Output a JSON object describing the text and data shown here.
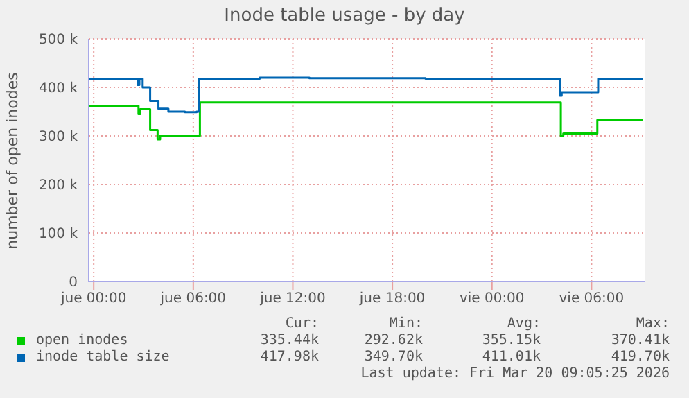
{
  "chart_data": {
    "type": "step",
    "title": "Inode table usage - by day",
    "ylabel": "number of open inodes",
    "xlim": [
      "2026-03-18T23:42",
      "2026-03-20T09:12"
    ],
    "xticks": [
      {
        "value": "2026-03-19T00:00",
        "label": "jue 00:00"
      },
      {
        "value": "2026-03-19T06:00",
        "label": "jue 06:00"
      },
      {
        "value": "2026-03-19T12:00",
        "label": "jue 12:00"
      },
      {
        "value": "2026-03-19T18:00",
        "label": "jue 18:00"
      },
      {
        "value": "2026-03-20T00:00",
        "label": "vie 00:00"
      },
      {
        "value": "2026-03-20T06:00",
        "label": "vie 06:00"
      }
    ],
    "ylim": [
      0,
      500
    ],
    "yticks": [
      0,
      {
        "value": 100,
        "label": "100 k"
      },
      {
        "value": 200,
        "label": "200 k"
      },
      {
        "value": 300,
        "label": "300 k"
      },
      {
        "value": 400,
        "label": "400 k"
      },
      {
        "value": 500,
        "label": "500 k"
      }
    ],
    "grid": true,
    "legend": "bottom left",
    "marker": "none",
    "line_style": "solid",
    "series": [
      {
        "name": "open inodes",
        "color": "#00cc00",
        "x": [
          "2026-03-18T23:42",
          "2026-03-19T02:36",
          "2026-03-19T02:42",
          "2026-03-19T02:48",
          "2026-03-19T03:18",
          "2026-03-19T03:24",
          "2026-03-19T03:48",
          "2026-03-19T03:51",
          "2026-03-19T04:00",
          "2026-03-19T06:12",
          "2026-03-19T06:24",
          "2026-03-20T00:00",
          "2026-03-20T04:00",
          "2026-03-20T04:09",
          "2026-03-20T04:18",
          "2026-03-20T06:12",
          "2026-03-20T06:21",
          "2026-03-20T09:05"
        ],
        "values": [
          362,
          362,
          345,
          355,
          355,
          312,
          312,
          293,
          300,
          300,
          369,
          369,
          369,
          300,
          305,
          305,
          333,
          333
        ]
      },
      {
        "name": "inode table size",
        "color": "#0066b3",
        "x": [
          "2026-03-18T23:42",
          "2026-03-19T02:33",
          "2026-03-19T02:39",
          "2026-03-19T02:45",
          "2026-03-19T02:57",
          "2026-03-19T03:24",
          "2026-03-19T03:54",
          "2026-03-19T04:30",
          "2026-03-19T05:30",
          "2026-03-19T06:12",
          "2026-03-19T06:21",
          "2026-03-19T10:00",
          "2026-03-19T13:00",
          "2026-03-19T20:00",
          "2026-03-20T04:00",
          "2026-03-20T04:06",
          "2026-03-20T04:12",
          "2026-03-20T06:18",
          "2026-03-20T06:24",
          "2026-03-20T09:05"
        ],
        "values": [
          418,
          418,
          405,
          418,
          400,
          372,
          356,
          350,
          349,
          350,
          418,
          420,
          419,
          418,
          418,
          383,
          390,
          390,
          418,
          418
        ]
      }
    ],
    "annotations": [
      "Cur:",
      "Min:",
      "Avg:",
      "Max:",
      "335.44k",
      "292.62k",
      "355.15k",
      "370.41k",
      "417.98k",
      "349.70k",
      "411.01k",
      "419.70k",
      "Last update: Fri Mar 20 09:05:25 2026"
    ]
  }
}
